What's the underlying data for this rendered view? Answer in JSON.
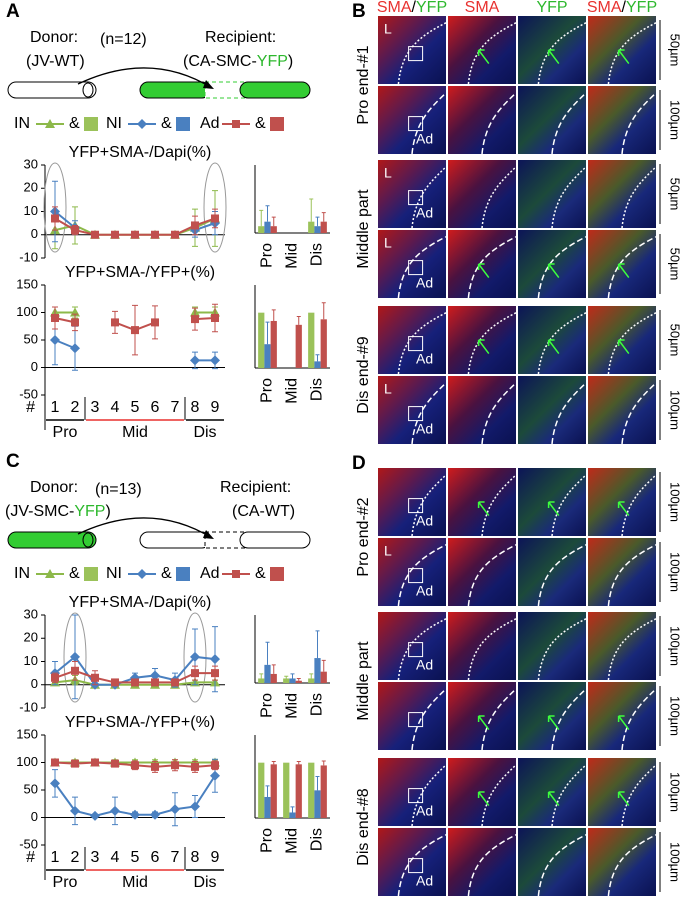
{
  "panels": [
    {
      "letter": "A",
      "donor": "Donor:",
      "donor_strain": [
        {
          "text": "(JV-WT)",
          "color": "#000000"
        }
      ],
      "n": "(n=12)",
      "recipient": "Recipient:",
      "recipient_strain": [
        {
          "text": "(CA-SMC-",
          "color": "#000000"
        },
        {
          "text": "YFP",
          "color": "#2db82d"
        },
        {
          "text": ")",
          "color": "#000000"
        }
      ],
      "legend_joiner": "&"
    },
    {
      "letter": "C",
      "donor": "Donor:",
      "donor_strain": [
        {
          "text": "(JV-SMC-",
          "color": "#000000"
        },
        {
          "text": "YFP",
          "color": "#2db82d"
        },
        {
          "text": ")",
          "color": "#000000"
        }
      ],
      "n": "(n=13)",
      "recipient": "Recipient:",
      "recipient_strain": [
        {
          "text": "(CA-WT)",
          "color": "#000000"
        }
      ],
      "legend_joiner": "&"
    }
  ],
  "chart_data": [
    {
      "type": "line",
      "title": "YFP+SMA-/Dapi(%)",
      "ylim": [
        -10,
        30
      ],
      "yticks": [
        -10,
        0,
        10,
        20,
        30
      ],
      "series": [
        {
          "name": "IN",
          "color": "#8db94a",
          "marker": "triangle",
          "values": [
            2,
            4,
            0,
            0,
            0,
            0,
            0,
            3,
            7
          ],
          "errors": [
            8,
            8,
            0,
            0,
            0,
            0,
            0,
            8,
            12
          ]
        },
        {
          "name": "NI",
          "color": "#4a80c0",
          "marker": "diamond",
          "values": [
            10,
            3,
            null,
            null,
            null,
            null,
            null,
            2,
            5
          ],
          "errors": [
            13,
            3,
            null,
            null,
            null,
            null,
            null,
            3,
            5
          ]
        },
        {
          "name": "Ad",
          "color": "#c0504d",
          "marker": "square",
          "values": [
            7,
            2,
            0,
            0,
            0,
            0,
            0,
            4,
            7
          ],
          "errors": [
            5,
            2,
            0,
            0,
            0,
            0,
            0,
            4,
            4
          ]
        }
      ]
    },
    {
      "type": "bar",
      "ylim": [
        0,
        30
      ],
      "series": [
        {
          "name": "IN",
          "color": "#9bc25a",
          "values": [
            3,
            0,
            5
          ],
          "errors": [
            7,
            0,
            10
          ]
        },
        {
          "name": "NI",
          "color": "#4a80c0",
          "values": [
            5,
            0,
            3
          ],
          "errors": [
            7,
            0,
            4
          ]
        },
        {
          "name": "Ad",
          "color": "#c0504d",
          "values": [
            3,
            0,
            5
          ],
          "errors": [
            4,
            0,
            4
          ]
        }
      ],
      "categories": [
        "Pro",
        "Mid",
        "Dis"
      ],
      "category_colors": [
        "#000000",
        "#e8312f",
        "#000000"
      ]
    },
    {
      "type": "line",
      "title": "YFP+SMA-/YFP+(%)",
      "ylim": [
        -50,
        150
      ],
      "yticks": [
        -50,
        0,
        50,
        100,
        150
      ],
      "x_label": "#",
      "categories": [
        "1",
        "2",
        "3",
        "4",
        "5",
        "6",
        "7",
        "8",
        "9"
      ],
      "groups": [
        {
          "name": "Pro",
          "color": "#000000"
        },
        {
          "name": "Mid",
          "color": "#e8312f"
        },
        {
          "name": "Dis",
          "color": "#000000"
        }
      ],
      "series": [
        {
          "name": "IN",
          "color": "#8db94a",
          "marker": "triangle",
          "values": [
            100,
            100,
            null,
            null,
            null,
            null,
            null,
            100,
            100
          ],
          "errors": [
            10,
            10,
            null,
            null,
            null,
            null,
            null,
            10,
            10
          ]
        },
        {
          "name": "NI",
          "color": "#4a80c0",
          "marker": "diamond",
          "values": [
            50,
            35,
            null,
            null,
            null,
            null,
            null,
            13,
            13
          ],
          "errors": [
            45,
            40,
            null,
            null,
            null,
            null,
            null,
            15,
            15
          ]
        },
        {
          "name": "Ad",
          "color": "#c0504d",
          "marker": "square",
          "values": [
            90,
            82,
            null,
            82,
            68,
            82,
            null,
            88,
            90
          ],
          "errors": [
            20,
            15,
            null,
            20,
            45,
            30,
            null,
            20,
            25
          ]
        }
      ]
    },
    {
      "type": "bar",
      "ylim": [
        0,
        150
      ],
      "series": [
        {
          "name": "IN",
          "color": "#9bc25a",
          "values": [
            100,
            null,
            100
          ],
          "errors": [
            0,
            null,
            0
          ]
        },
        {
          "name": "NI",
          "color": "#4a80c0",
          "values": [
            43,
            null,
            12
          ],
          "errors": [
            40,
            null,
            12
          ]
        },
        {
          "name": "Ad",
          "color": "#c0504d",
          "values": [
            85,
            78,
            88
          ],
          "errors": [
            20,
            15,
            30
          ]
        }
      ],
      "categories": [
        "Pro",
        "Mid",
        "Dis"
      ],
      "category_colors": [
        "#000000",
        "#e8312f",
        "#000000"
      ]
    },
    {
      "type": "line",
      "title": "YFP+SMA-/Dapi(%)",
      "ylim": [
        -10,
        30
      ],
      "yticks": [
        -10,
        0,
        10,
        20,
        30
      ],
      "series": [
        {
          "name": "IN",
          "color": "#8db94a",
          "marker": "triangle",
          "values": [
            1,
            2,
            0,
            0,
            0,
            0,
            0,
            1,
            1
          ],
          "errors": [
            1,
            2,
            0,
            0,
            0,
            0,
            0,
            1,
            1
          ]
        },
        {
          "name": "NI",
          "color": "#4a80c0",
          "marker": "diamond",
          "values": [
            5,
            12,
            0,
            0,
            3,
            4,
            2,
            12,
            11
          ],
          "errors": [
            5,
            18,
            0,
            0,
            2,
            3,
            3,
            12,
            14
          ]
        },
        {
          "name": "Ad",
          "color": "#c0504d",
          "marker": "square",
          "values": [
            3,
            6,
            3,
            1,
            1,
            1,
            1,
            5,
            5
          ],
          "errors": [
            2,
            4,
            3,
            1,
            1,
            1,
            1,
            3,
            3
          ]
        }
      ]
    },
    {
      "type": "bar",
      "ylim": [
        0,
        30
      ],
      "series": [
        {
          "name": "IN",
          "color": "#9bc25a",
          "values": [
            2,
            2,
            2
          ],
          "errors": [
            2,
            1,
            2
          ]
        },
        {
          "name": "NI",
          "color": "#4a80c0",
          "values": [
            8,
            2,
            11
          ],
          "errors": [
            10,
            2,
            12
          ]
        },
        {
          "name": "Ad",
          "color": "#c0504d",
          "values": [
            4,
            1,
            5
          ],
          "errors": [
            4,
            1,
            5
          ]
        }
      ],
      "categories": [
        "Pro",
        "Mid",
        "Dis"
      ],
      "category_colors": [
        "#000000",
        "#e8312f",
        "#000000"
      ]
    },
    {
      "type": "line",
      "title": "YFP+SMA-/YFP+(%)",
      "ylim": [
        -50,
        150
      ],
      "yticks": [
        -50,
        0,
        50,
        100,
        150
      ],
      "x_label": "#",
      "categories": [
        "1",
        "2",
        "3",
        "4",
        "5",
        "6",
        "7",
        "8",
        "9"
      ],
      "groups": [
        {
          "name": "Pro",
          "color": "#000000"
        },
        {
          "name": "Mid",
          "color": "#e8312f"
        },
        {
          "name": "Dis",
          "color": "#000000"
        }
      ],
      "series": [
        {
          "name": "IN",
          "color": "#8db94a",
          "marker": "triangle",
          "values": [
            100,
            100,
            100,
            100,
            100,
            100,
            100,
            100,
            100
          ],
          "errors": [
            5,
            5,
            5,
            5,
            5,
            5,
            5,
            5,
            5
          ]
        },
        {
          "name": "NI",
          "color": "#4a80c0",
          "marker": "diamond",
          "values": [
            62,
            12,
            3,
            12,
            5,
            5,
            15,
            20,
            76
          ],
          "errors": [
            25,
            25,
            3,
            25,
            5,
            5,
            30,
            20,
            30
          ]
        },
        {
          "name": "Ad",
          "color": "#c0504d",
          "marker": "square",
          "values": [
            100,
            98,
            100,
            98,
            95,
            92,
            95,
            92,
            95
          ],
          "errors": [
            5,
            5,
            5,
            5,
            8,
            10,
            10,
            10,
            8
          ]
        }
      ]
    },
    {
      "type": "bar",
      "ylim": [
        0,
        150
      ],
      "series": [
        {
          "name": "IN",
          "color": "#9bc25a",
          "values": [
            100,
            100,
            100
          ],
          "errors": [
            0,
            0,
            0
          ]
        },
        {
          "name": "NI",
          "color": "#4a80c0",
          "values": [
            38,
            10,
            50
          ],
          "errors": [
            20,
            10,
            25
          ]
        },
        {
          "name": "Ad",
          "color": "#c0504d",
          "values": [
            97,
            97,
            95
          ],
          "errors": [
            5,
            5,
            8
          ]
        }
      ],
      "categories": [
        "Pro",
        "Mid",
        "Dis"
      ],
      "category_colors": [
        "#000000",
        "#e8312f",
        "#000000"
      ]
    }
  ],
  "micrographs": [
    {
      "letter": "B",
      "header": [
        [
          {
            "text": "SMA",
            "color": "#e8312f"
          },
          {
            "text": "/",
            "color": "#000000"
          },
          {
            "text": "YFP",
            "color": "#2db82d"
          }
        ],
        [
          {
            "text": "SMA",
            "color": "#e8312f"
          }
        ],
        [
          {
            "text": "YFP",
            "color": "#2db82d"
          }
        ],
        [
          {
            "text": "SMA",
            "color": "#e8312f"
          },
          {
            "text": "/",
            "color": "#000000"
          },
          {
            "text": "YFP",
            "color": "#2db82d"
          }
        ]
      ],
      "groups": [
        {
          "label": "Pro end-#1",
          "rows": [
            {
              "scale": "50µm",
              "tags": [
                "L"
              ]
            },
            {
              "scale": "100µm",
              "tags": [
                "Ad"
              ]
            }
          ]
        },
        {
          "label": "Middle part",
          "rows": [
            {
              "scale": "50µm",
              "tags": [
                "L",
                "Ad"
              ]
            },
            {
              "scale": "50µm",
              "tags": [
                "L",
                "Ad"
              ]
            }
          ]
        },
        {
          "label": "Dis end-#9",
          "rows": [
            {
              "scale": "50µm",
              "tags": [
                "Ad"
              ]
            },
            {
              "scale": "100µm",
              "tags": [
                "L",
                "Ad"
              ]
            }
          ]
        }
      ]
    },
    {
      "letter": "D",
      "groups": [
        {
          "label": "Pro end-#2",
          "rows": [
            {
              "scale": "100µm",
              "tags": [
                "Ad"
              ]
            },
            {
              "scale": "100µm",
              "tags": [
                "L",
                "Ad"
              ]
            }
          ]
        },
        {
          "label": "Middle part",
          "rows": [
            {
              "scale": "100µm",
              "tags": [
                "Ad"
              ]
            },
            {
              "scale": "100µm",
              "tags": []
            }
          ]
        },
        {
          "label": "Dis end-#8",
          "rows": [
            {
              "scale": "100µm",
              "tags": [
                "Ad"
              ]
            },
            {
              "scale": "100µm",
              "tags": [
                "Ad"
              ]
            }
          ]
        }
      ]
    }
  ]
}
